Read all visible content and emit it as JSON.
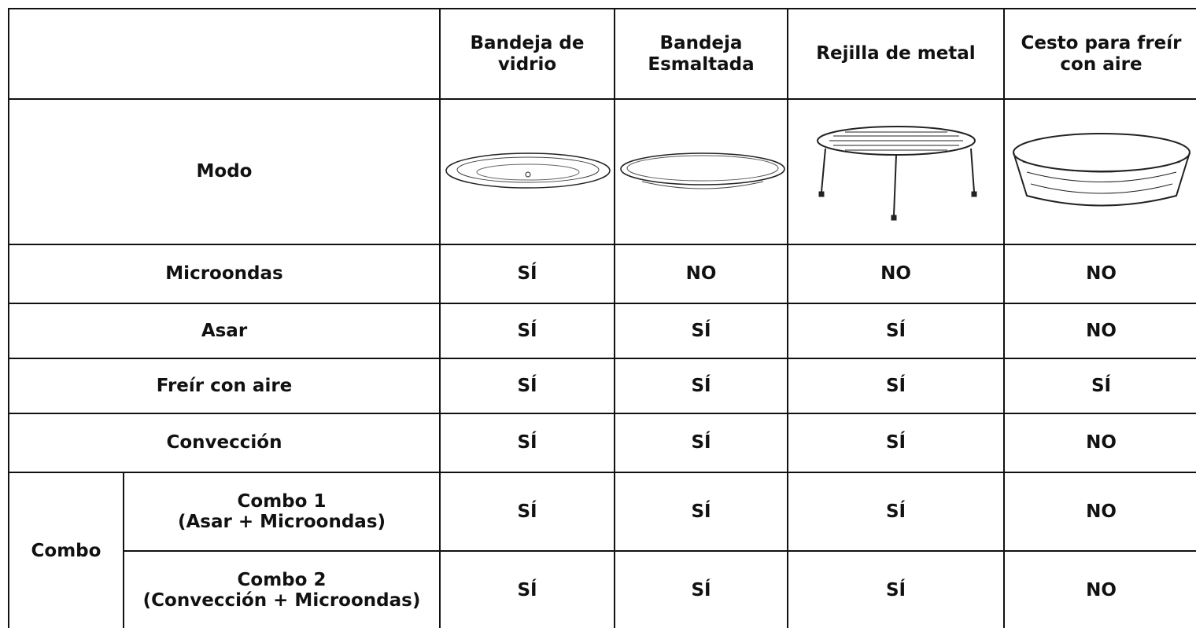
{
  "table": {
    "header": [
      "Bandeja de vidrio",
      "Bandeja Esmaltada",
      "Rejilla de metal",
      "Cesto para freír con aire"
    ],
    "mode_label": "Modo",
    "rows": [
      {
        "mode": "Microondas",
        "cells": [
          "SÍ",
          "NO",
          "NO",
          "NO"
        ]
      },
      {
        "mode": "Asar",
        "cells": [
          "SÍ",
          "SÍ",
          "SÍ",
          "NO"
        ]
      },
      {
        "mode": "Freír con aire",
        "cells": [
          "SÍ",
          "SÍ",
          "SÍ",
          "SÍ"
        ]
      },
      {
        "mode": "Convección",
        "cells": [
          "SÍ",
          "SÍ",
          "SÍ",
          "NO"
        ]
      }
    ],
    "combo": {
      "label": "Combo",
      "rows": [
        {
          "mode": "Combo 1",
          "detail": "(Asar + Microondas)",
          "cells": [
            "SÍ",
            "SÍ",
            "SÍ",
            "NO"
          ]
        },
        {
          "mode": "Combo 2",
          "detail": "(Convección + Microondas)",
          "cells": [
            "SÍ",
            "SÍ",
            "SÍ",
            "NO"
          ]
        }
      ]
    }
  }
}
